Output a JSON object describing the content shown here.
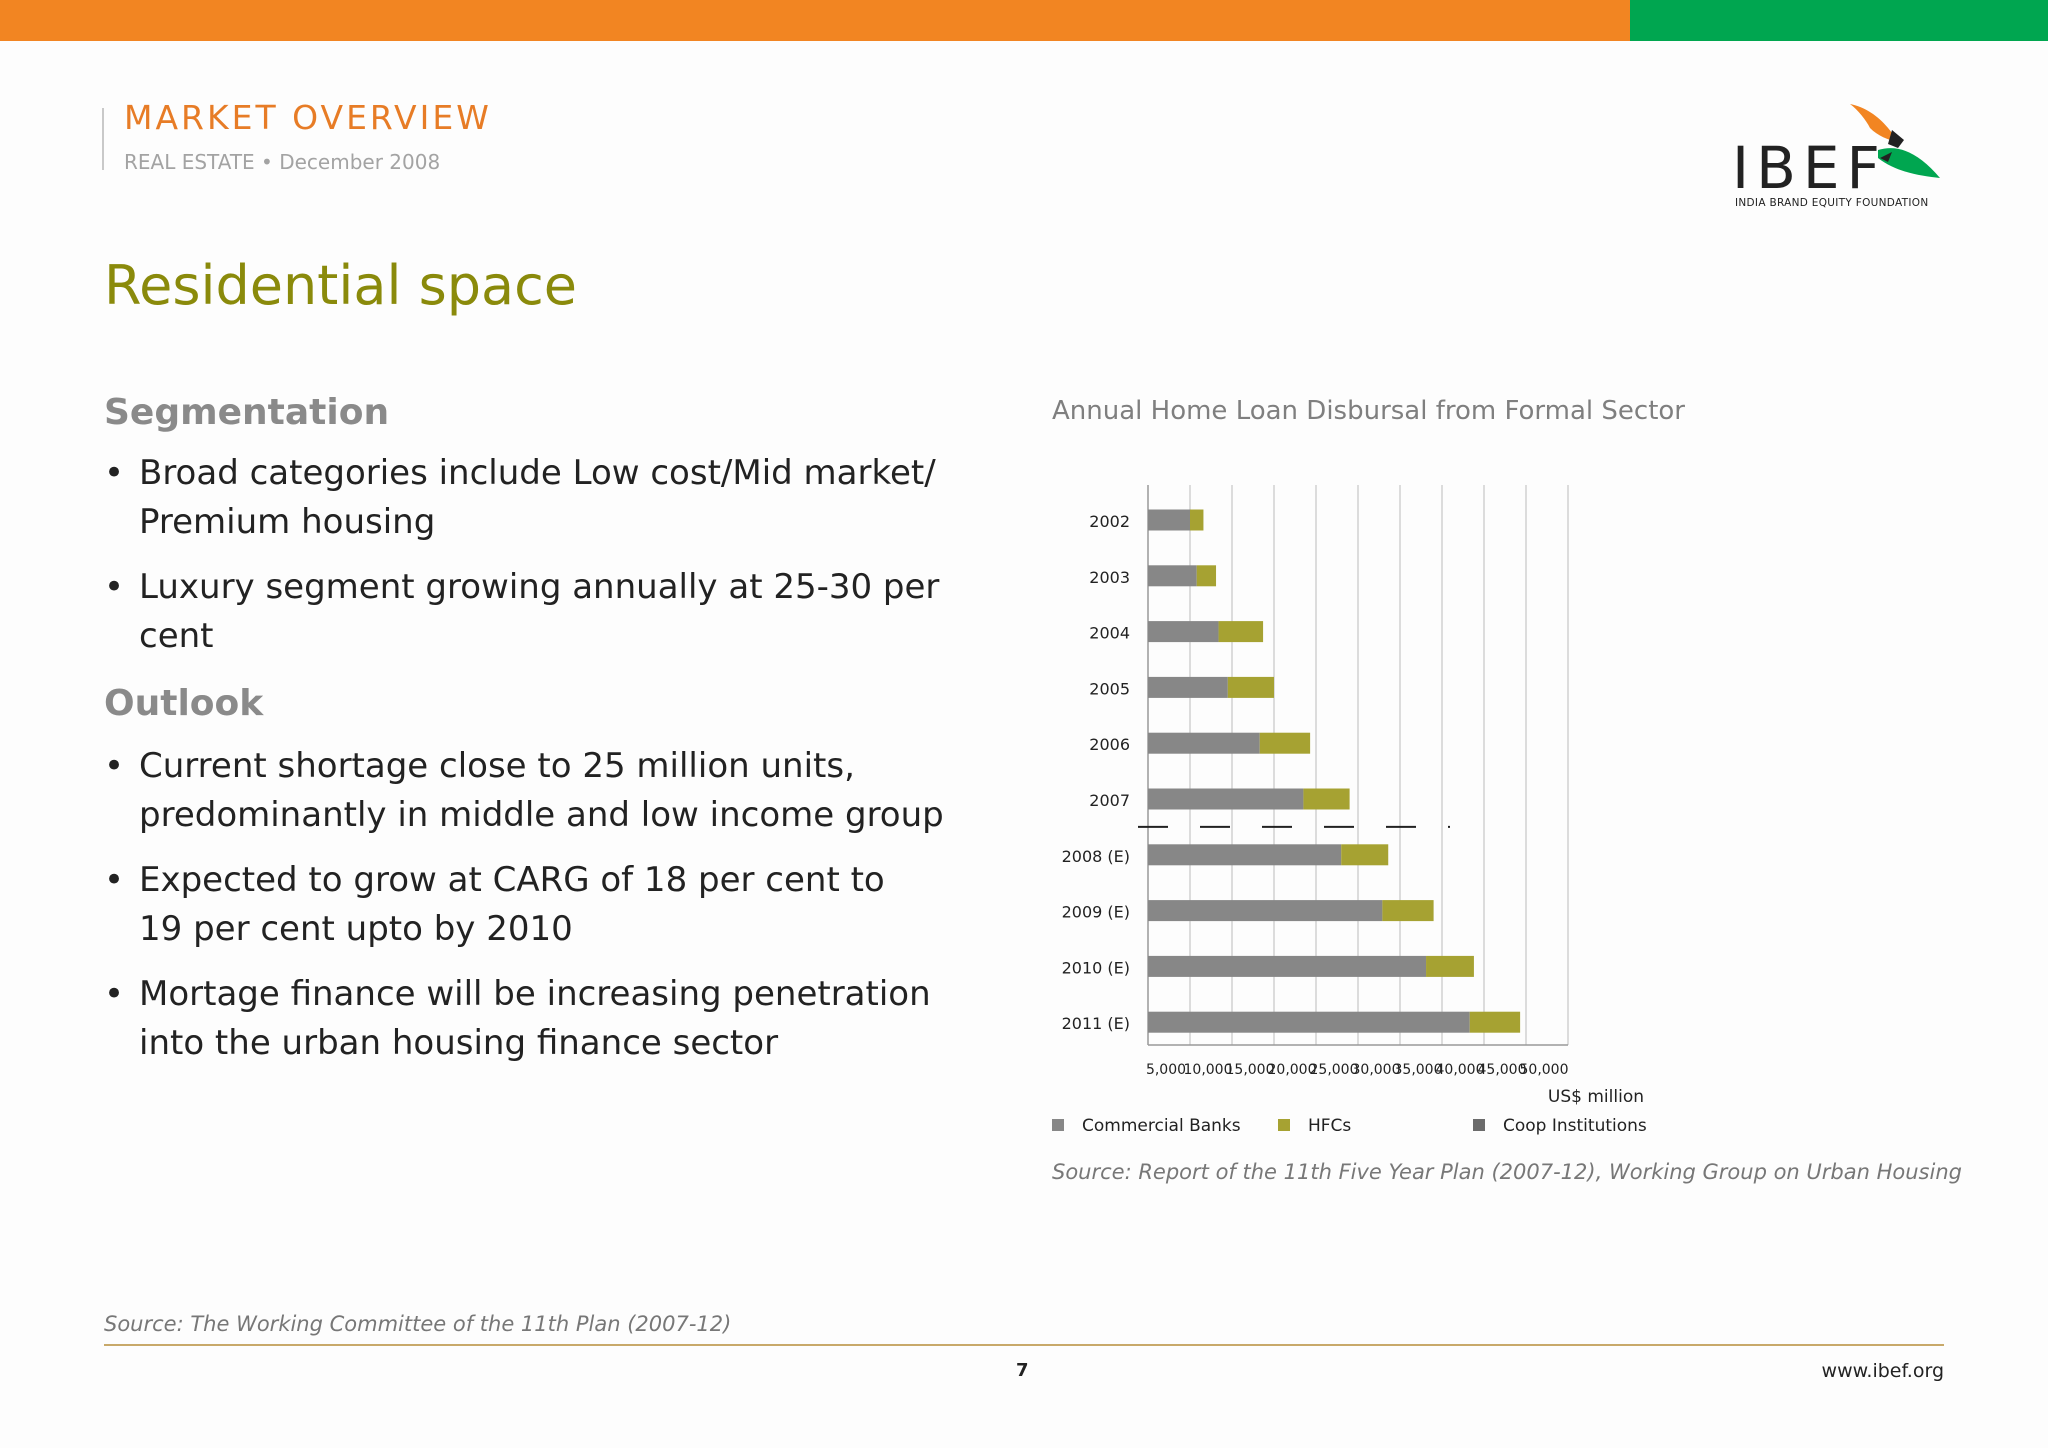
{
  "header": {
    "section_title": "MARKET OVERVIEW",
    "section_subtitle": "REAL ESTATE • December 2008",
    "logo_text": "IBEF",
    "logo_subtext": "INDIA BRAND EQUITY FOUNDATION",
    "colors": {
      "orange": "#f28522",
      "green": "#00a650"
    }
  },
  "title": "Residential space",
  "segmentation": {
    "heading": "Segmentation",
    "bullets": [
      [
        "Broad categories include Low cost/Mid market/",
        "Premium housing"
      ],
      [
        "Luxury segment growing annually at 25-30 per cent"
      ]
    ]
  },
  "outlook": {
    "heading": "Outlook",
    "bullets": [
      [
        "Current shortage close to 25 million units,",
        "predominantly in middle and low income group"
      ],
      [
        "Expected to grow at CARG of 18 per cent to",
        "19 per cent upto by 2010"
      ],
      [
        "Mortage finance will be increasing penetration",
        "into the urban housing finance sector"
      ]
    ]
  },
  "chart_data": {
    "type": "bar",
    "orientation": "horizontal",
    "stacked": true,
    "title": "Annual Home Loan Disbursal from Formal Sector",
    "xlabel": "US$ million",
    "xlim": [
      0,
      50000
    ],
    "xticks": [
      "5,000",
      "10,000",
      "15,000",
      "20,000",
      "25,000",
      "30,000",
      "35,000",
      "40,000",
      "45,000",
      "50,000"
    ],
    "grid": true,
    "legend_position": "bottom",
    "categories": [
      "2002",
      "2003",
      "2004",
      "2005",
      "2006",
      "2007",
      "2008 (E)",
      "2009 (E)",
      "2010 (E)",
      "2011 (E)"
    ],
    "series": [
      {
        "name": "Commercial Banks",
        "color": "#878787",
        "values": [
          5000,
          5800,
          8400,
          9500,
          13300,
          18500,
          23000,
          27900,
          33100,
          38300
        ]
      },
      {
        "name": "HFCs",
        "color": "#a6a232",
        "values": [
          1600,
          2300,
          5300,
          5500,
          6000,
          5500,
          5600,
          6100,
          5700,
          6000
        ]
      },
      {
        "name": "Coop Institutions",
        "color": "#6b6b6b",
        "values": [
          0,
          0,
          0,
          0,
          0,
          0,
          0,
          0,
          0,
          0
        ]
      }
    ]
  },
  "chart_source": "Source: Report of the 11th Five Year Plan (2007-12), Working Group on Urban Housing",
  "footer": {
    "source": "Source: The Working Committee of the 11th Plan (2007-12)",
    "page_number": "7",
    "website": "www.ibef.org"
  }
}
